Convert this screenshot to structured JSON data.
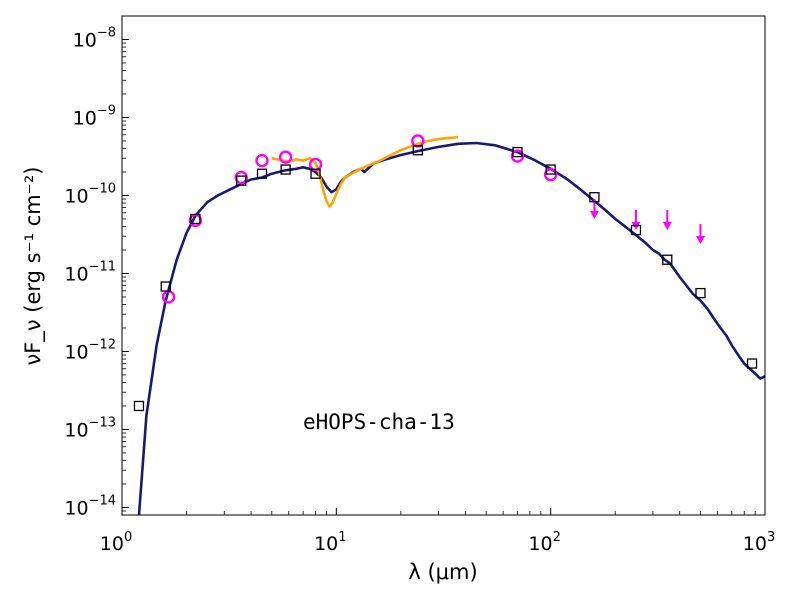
{
  "chart_data": {
    "type": "scatter",
    "title": "",
    "xlabel": "λ (μm)",
    "ylabel": "νF_ν (erg s⁻¹ cm⁻²)",
    "xscale": "log",
    "yscale": "log",
    "xlim": [
      1,
      1000
    ],
    "ylim": [
      8e-15,
      2e-08
    ],
    "grid": false,
    "annotation": "eHOPS-cha-13",
    "x_ticks": [
      {
        "value": 1,
        "base": "10",
        "exp": "0"
      },
      {
        "value": 10,
        "base": "10",
        "exp": "1"
      },
      {
        "value": 100,
        "base": "10",
        "exp": "2"
      },
      {
        "value": 1000,
        "base": "10",
        "exp": "3"
      }
    ],
    "y_ticks": [
      {
        "value": 1e-14,
        "base": "10",
        "exp": "−14"
      },
      {
        "value": 1e-13,
        "base": "10",
        "exp": "−13"
      },
      {
        "value": 1e-12,
        "base": "10",
        "exp": "−12"
      },
      {
        "value": 1e-11,
        "base": "10",
        "exp": "−11"
      },
      {
        "value": 1e-10,
        "base": "10",
        "exp": "−10"
      },
      {
        "value": 1e-09,
        "base": "10",
        "exp": "−9"
      },
      {
        "value": 1e-08,
        "base": "10",
        "exp": "−8"
      }
    ],
    "colors": {
      "model": "#191970",
      "spectrum": "#ffa500",
      "observed": "#ff00ff",
      "model_photometry": "#000000"
    },
    "series": [
      {
        "kind": "model-line",
        "x": [
          1.2,
          1.3,
          1.45,
          1.6,
          1.8,
          2.0,
          2.2,
          2.5,
          2.8,
          3.2,
          3.6,
          4.0,
          4.5,
          5.0,
          5.8,
          6.5,
          7.0,
          7.5,
          8.0,
          8.5,
          9.0,
          9.5,
          10.0,
          10.5,
          11.0,
          12.0,
          13.0,
          13.5,
          14.0,
          15.0,
          17.0,
          20.0,
          24.0,
          30.0,
          37.0,
          45.0,
          55.0,
          70.0,
          85.0,
          100.0,
          120.0,
          140.0,
          160.0,
          180.0,
          200.0,
          220.0,
          250.0,
          280.0,
          300.0,
          320.0,
          340.0,
          360.0,
          380.0,
          400.0,
          430.0,
          460.0,
          500.0,
          540.0,
          580.0,
          620.0,
          660.0,
          700.0,
          750.0,
          800.0,
          850.0,
          900.0,
          950.0,
          1000.0
        ],
        "y": [
          8e-15,
          1.5e-13,
          1.2e-12,
          4.5e-12,
          1.5e-11,
          3.3e-11,
          5.5e-11,
          8.2e-11,
          1e-10,
          1.2e-10,
          1.4e-10,
          1.6e-10,
          1.7e-10,
          1.9e-10,
          2.1e-10,
          2.2e-10,
          2.3e-10,
          2.2e-10,
          2e-10,
          1.7e-10,
          1.3e-10,
          1.1e-10,
          1.2e-10,
          1.5e-10,
          1.7e-10,
          2e-10,
          2.2e-10,
          2e-10,
          2.2e-10,
          2.6e-10,
          2.9e-10,
          3.3e-10,
          3.7e-10,
          4.2e-10,
          4.6e-10,
          4.7e-10,
          4.4e-10,
          3.6e-10,
          2.8e-10,
          2.2e-10,
          1.6e-10,
          1.15e-10,
          8.5e-11,
          6.5e-11,
          5e-11,
          4.1e-11,
          3.1e-11,
          2.4e-11,
          2e-11,
          1.8e-11,
          1.5e-11,
          1.35e-11,
          1.1e-11,
          9e-12,
          7e-12,
          5.5e-12,
          4.5e-12,
          3.5e-12,
          2.6e-12,
          2e-12,
          1.6e-12,
          1.2e-12,
          9e-13,
          7e-13,
          6e-13,
          5.2e-13,
          4.5e-13,
          4.8e-13
        ]
      },
      {
        "kind": "spectrum-line",
        "x": [
          5.0,
          5.5,
          6.0,
          6.5,
          7.0,
          7.5,
          8.0,
          8.3,
          8.6,
          9.0,
          9.3,
          9.6,
          10.0,
          10.5,
          11.0,
          12.0,
          13.0,
          14.0,
          16.0,
          18.0,
          20.0,
          23.0,
          26.0,
          29.0,
          32.0,
          35.0,
          37.0
        ],
        "y": [
          3e-10,
          2.85e-10,
          2.7e-10,
          2.9e-10,
          2.8e-10,
          3e-10,
          2.6e-10,
          2e-10,
          1.3e-10,
          8.5e-11,
          7.2e-11,
          8e-11,
          1.05e-10,
          1.4e-10,
          1.7e-10,
          1.95e-10,
          2.2e-10,
          2.4e-10,
          2.8e-10,
          3.3e-10,
          3.8e-10,
          4.4e-10,
          4.9e-10,
          5.2e-10,
          5.4e-10,
          5.5e-10,
          5.6e-10
        ]
      },
      {
        "kind": "observed-photometry",
        "x": [
          1.65,
          2.2,
          3.6,
          4.5,
          5.8,
          8.0,
          24.0,
          70.0,
          100.0
        ],
        "y": [
          5e-12,
          4.8e-11,
          1.7e-10,
          2.8e-10,
          3.1e-10,
          2.5e-10,
          5e-10,
          3.2e-10,
          1.85e-10
        ]
      },
      {
        "kind": "upper-limits",
        "x": [
          160.0,
          250.0,
          350.0,
          500.0
        ],
        "y": [
          9e-11,
          6.5e-11,
          6.5e-11,
          4.3e-11
        ]
      },
      {
        "kind": "model-photometry",
        "x": [
          1.2,
          1.6,
          2.2,
          3.6,
          4.5,
          5.8,
          8.0,
          24.0,
          70.0,
          100.0,
          160.0,
          250.0,
          350.0,
          500.0,
          870.0
        ],
        "y": [
          2e-13,
          6.8e-12,
          5e-11,
          1.55e-10,
          1.9e-10,
          2.15e-10,
          1.9e-10,
          3.8e-10,
          3.6e-10,
          2.15e-10,
          9.5e-11,
          3.6e-11,
          1.5e-11,
          5.6e-12,
          7e-13
        ]
      }
    ]
  }
}
